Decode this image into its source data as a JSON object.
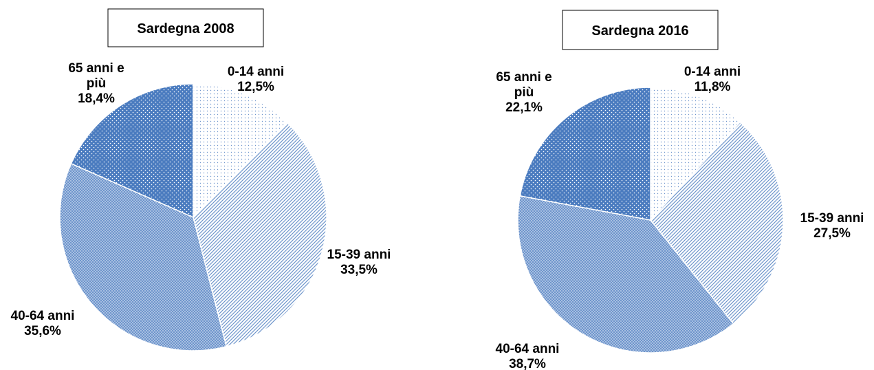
{
  "colors": {
    "blue_dark": "#4a7bbf",
    "blue_mid": "#6e95cc",
    "blue_light": "#8fb0dc",
    "pattern_white": "#ffffff",
    "outline": "#ffffff"
  },
  "chart_data": [
    {
      "type": "pie",
      "title": "Sardegna 2008",
      "slices": [
        {
          "label_lines": [
            "0-14 anni"
          ],
          "value": 12.5,
          "value_text": "12,5%"
        },
        {
          "label_lines": [
            "15-39 anni"
          ],
          "value": 33.5,
          "value_text": "33,5%"
        },
        {
          "label_lines": [
            "40-64 anni"
          ],
          "value": 35.6,
          "value_text": "35,6%"
        },
        {
          "label_lines": [
            "65 anni e",
            "più"
          ],
          "value": 18.4,
          "value_text": "18,4%"
        }
      ],
      "start": "12 o'clock",
      "direction": "clockwise",
      "legend": "none"
    },
    {
      "type": "pie",
      "title": "Sardegna 2016",
      "slices": [
        {
          "label_lines": [
            "0-14 anni"
          ],
          "value": 11.8,
          "value_text": "11,8%"
        },
        {
          "label_lines": [
            "15-39 anni"
          ],
          "value": 27.5,
          "value_text": "27,5%"
        },
        {
          "label_lines": [
            "40-64 anni"
          ],
          "value": 38.7,
          "value_text": "38,7%"
        },
        {
          "label_lines": [
            "65 anni e",
            "più"
          ],
          "value": 22.1,
          "value_text": "22,1%"
        }
      ],
      "start": "12 o'clock",
      "direction": "clockwise",
      "legend": "none"
    }
  ]
}
